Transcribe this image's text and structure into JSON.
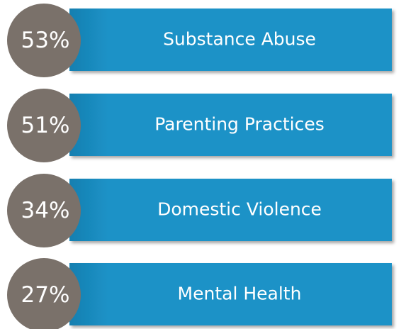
{
  "items": [
    {
      "percent": "53%",
      "label": "Substance Abuse"
    },
    {
      "percent": "51%",
      "label": "Parenting Practices"
    },
    {
      "percent": "34%",
      "label": "Domestic Violence"
    },
    {
      "percent": "27%",
      "label": "Mental Health"
    }
  ]
}
